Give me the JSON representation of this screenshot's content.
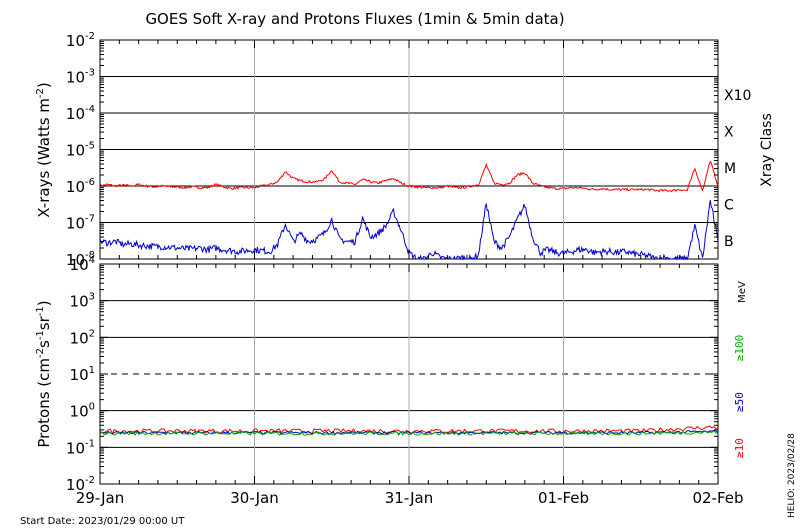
{
  "chart_data": [
    {
      "type": "line",
      "title": "GOES Soft X-ray and Protons Fluxes   (1min & 5min data)",
      "ylabel": "X-rays (Watts m",
      "ylabel_sup": "-2",
      "ylabel_close": ")",
      "y_scale": "log",
      "ylim": [
        1e-08,
        0.01
      ],
      "y_ticks": [
        {
          "base": "10",
          "exp": "-2",
          "value": 0.01
        },
        {
          "base": "10",
          "exp": "-3",
          "value": 0.001
        },
        {
          "base": "10",
          "exp": "-4",
          "value": 0.0001
        },
        {
          "base": "10",
          "exp": "-5",
          "value": 1e-05
        },
        {
          "base": "10",
          "exp": "-6",
          "value": 1e-06
        },
        {
          "base": "10",
          "exp": "-7",
          "value": 1e-07
        },
        {
          "base": "10",
          "exp": "-8",
          "value": 1e-08
        }
      ],
      "right_axis_label": "Xray Class",
      "class_labels": [
        {
          "label": "X10",
          "value": 0.001
        },
        {
          "label": "X",
          "value": 0.0001
        },
        {
          "label": "M",
          "value": 1e-05
        },
        {
          "label": "C",
          "value": 1e-06
        },
        {
          "label": "B",
          "value": 1e-07
        }
      ],
      "series": [
        {
          "color": "#ff0000",
          "x": [
            0,
            0.05,
            0.1,
            0.15,
            0.2,
            0.25,
            0.3,
            0.35,
            0.4,
            0.45,
            0.5,
            0.55,
            0.6,
            0.65,
            0.7,
            0.75,
            0.8,
            0.85,
            0.9,
            0.95,
            1.0,
            1.05,
            1.1,
            1.15,
            1.2,
            1.25,
            1.3,
            1.35,
            1.4,
            1.45,
            1.5,
            1.55,
            1.6,
            1.65,
            1.7,
            1.75,
            1.8,
            1.85,
            1.9,
            1.95,
            2.0,
            2.05,
            2.1,
            2.15,
            2.2,
            2.25,
            2.3,
            2.35,
            2.4,
            2.45,
            2.5,
            2.55,
            2.6,
            2.65,
            2.7,
            2.75,
            2.8,
            2.85,
            2.9,
            2.95,
            3.0,
            3.05,
            3.1,
            3.15,
            3.2,
            3.25,
            3.3,
            3.35,
            3.4,
            3.45,
            3.5,
            3.55,
            3.6,
            3.65,
            3.7,
            3.75,
            3.8,
            3.85,
            3.9,
            3.95,
            4.0
          ],
          "y": [
            1e-06,
            1.1e-06,
            1e-06,
            1.05e-06,
            1e-06,
            1.1e-06,
            1e-06,
            9.5e-07,
            1e-06,
            9.5e-07,
            9.5e-07,
            9e-07,
            9.5e-07,
            9e-07,
            9e-07,
            1.1e-06,
            9.5e-07,
            8.5e-07,
            9e-07,
            9e-07,
            9e-07,
            1e-06,
            1.1e-06,
            1.3e-06,
            2.5e-06,
            1.6e-06,
            1.4e-06,
            1.3e-06,
            1.3e-06,
            1.5e-06,
            2.7e-06,
            1.3e-06,
            1.2e-06,
            1.1e-06,
            1.5e-06,
            1.3e-06,
            1.2e-06,
            1.4e-06,
            1.6e-06,
            1.2e-06,
            1e-06,
            9.5e-07,
            9e-07,
            9e-07,
            9e-07,
            1e-06,
            9e-07,
            9e-07,
            1e-06,
            1.1e-06,
            3.8e-06,
            1.2e-06,
            1.1e-06,
            1.2e-06,
            2e-06,
            2.3e-06,
            1.2e-06,
            1e-06,
            9e-07,
            8.5e-07,
            8.5e-07,
            9e-07,
            9e-07,
            8.5e-07,
            8e-07,
            8.5e-07,
            8e-07,
            8e-07,
            8e-07,
            8e-07,
            8e-07,
            8e-07,
            7.5e-07,
            7.5e-07,
            7.5e-07,
            8e-07,
            7.5e-07,
            3e-06,
            7.5e-07,
            5e-06,
            1e-06
          ]
        },
        {
          "color": "#0000cc",
          "x": [
            0,
            0.05,
            0.1,
            0.15,
            0.2,
            0.25,
            0.3,
            0.35,
            0.4,
            0.45,
            0.5,
            0.55,
            0.6,
            0.65,
            0.7,
            0.75,
            0.8,
            0.85,
            0.9,
            0.95,
            1.0,
            1.05,
            1.1,
            1.15,
            1.2,
            1.25,
            1.3,
            1.35,
            1.4,
            1.45,
            1.5,
            1.55,
            1.6,
            1.65,
            1.7,
            1.75,
            1.8,
            1.85,
            1.9,
            1.95,
            2.0,
            2.05,
            2.1,
            2.15,
            2.2,
            2.25,
            2.3,
            2.35,
            2.4,
            2.45,
            2.5,
            2.55,
            2.6,
            2.65,
            2.7,
            2.75,
            2.8,
            2.85,
            2.9,
            2.95,
            3.0,
            3.05,
            3.1,
            3.15,
            3.2,
            3.25,
            3.3,
            3.35,
            3.4,
            3.45,
            3.5,
            3.55,
            3.6,
            3.65,
            3.7,
            3.75,
            3.8,
            3.85,
            3.9,
            3.95,
            4.0
          ],
          "y": [
            3e-08,
            2.8e-08,
            3e-08,
            2.5e-08,
            2.6e-08,
            2.4e-08,
            2.3e-08,
            2.2e-08,
            2.2e-08,
            2.1e-08,
            2e-08,
            1.9e-08,
            1.9e-08,
            2e-08,
            1.8e-08,
            2e-08,
            1.8e-08,
            1.7e-08,
            1.6e-08,
            1.7e-08,
            1.8e-08,
            1.7e-08,
            1.6e-08,
            2.5e-08,
            9e-08,
            3e-08,
            5e-08,
            3e-08,
            3.5e-08,
            5e-08,
            1.2e-07,
            3.5e-08,
            3e-08,
            3e-08,
            1.3e-07,
            4e-08,
            5e-08,
            8e-08,
            2e-07,
            6e-08,
            1.5e-08,
            1e-08,
            1e-08,
            1.5e-08,
            1.1e-08,
            1e-08,
            1e-08,
            1.1e-08,
            1e-08,
            1.3e-08,
            3.5e-07,
            3e-08,
            2e-08,
            4e-08,
            1.2e-07,
            3e-07,
            4e-08,
            1.5e-08,
            1.8e-08,
            1.5e-08,
            1.4e-08,
            1.6e-08,
            1.8e-08,
            1.8e-08,
            1.5e-08,
            1.6e-08,
            1.6e-08,
            1.5e-08,
            1.6e-08,
            1.4e-08,
            1.3e-08,
            1.2e-08,
            1e-08,
            1.1e-08,
            1e-08,
            1e-08,
            1e-08,
            8e-08,
            1e-08,
            4e-07,
            3e-08
          ]
        }
      ]
    },
    {
      "type": "line",
      "ylabel": "Protons (cm",
      "ylabel_sup1": "-2",
      "ylabel_mid": "s",
      "ylabel_sup2": "-1",
      "ylabel_mid2": "sr",
      "ylabel_sup3": "-1",
      "ylabel_close": ")",
      "y_scale": "log",
      "ylim": [
        0.01,
        10000
      ],
      "y_ticks": [
        {
          "base": "10",
          "exp": "4",
          "value": 10000.0
        },
        {
          "base": "10",
          "exp": "3",
          "value": 1000.0
        },
        {
          "base": "10",
          "exp": "2",
          "value": 100.0
        },
        {
          "base": "10",
          "exp": "1",
          "value": 10.0
        },
        {
          "base": "10",
          "exp": "0",
          "value": 1.0
        },
        {
          "base": "10",
          "exp": "-1",
          "value": 0.1
        },
        {
          "base": "10",
          "exp": "-2",
          "value": 0.01
        }
      ],
      "threshold_dashed": 10,
      "right_axis_unit": "MeV",
      "energy_labels": [
        {
          "label": "≥100",
          "color": "#00aa00"
        },
        {
          "label": "≥50",
          "color": "#0000cc"
        },
        {
          "label": "≥10",
          "color": "#ff0000"
        }
      ],
      "series": [
        {
          "color": "#ff0000",
          "level": 0.28,
          "spread": 0.045,
          "rise_end": 0.36
        },
        {
          "color": "#0000cc",
          "level": 0.25,
          "spread": 0.03,
          "rise_end": 0.27
        },
        {
          "color": "#00aa00",
          "level": 0.24,
          "spread": 0.035,
          "rise_end": 0.26
        }
      ]
    }
  ],
  "x_axis": {
    "tick_labels": [
      "29-Jan",
      "30-Jan",
      "31-Jan",
      "01-Feb",
      "02-Feb"
    ],
    "range_days": [
      0,
      4
    ]
  },
  "footer": {
    "start_date": "Start Date: 2023/01/29 00:00 UT",
    "credit": "HELIO: 2023/02/28"
  }
}
